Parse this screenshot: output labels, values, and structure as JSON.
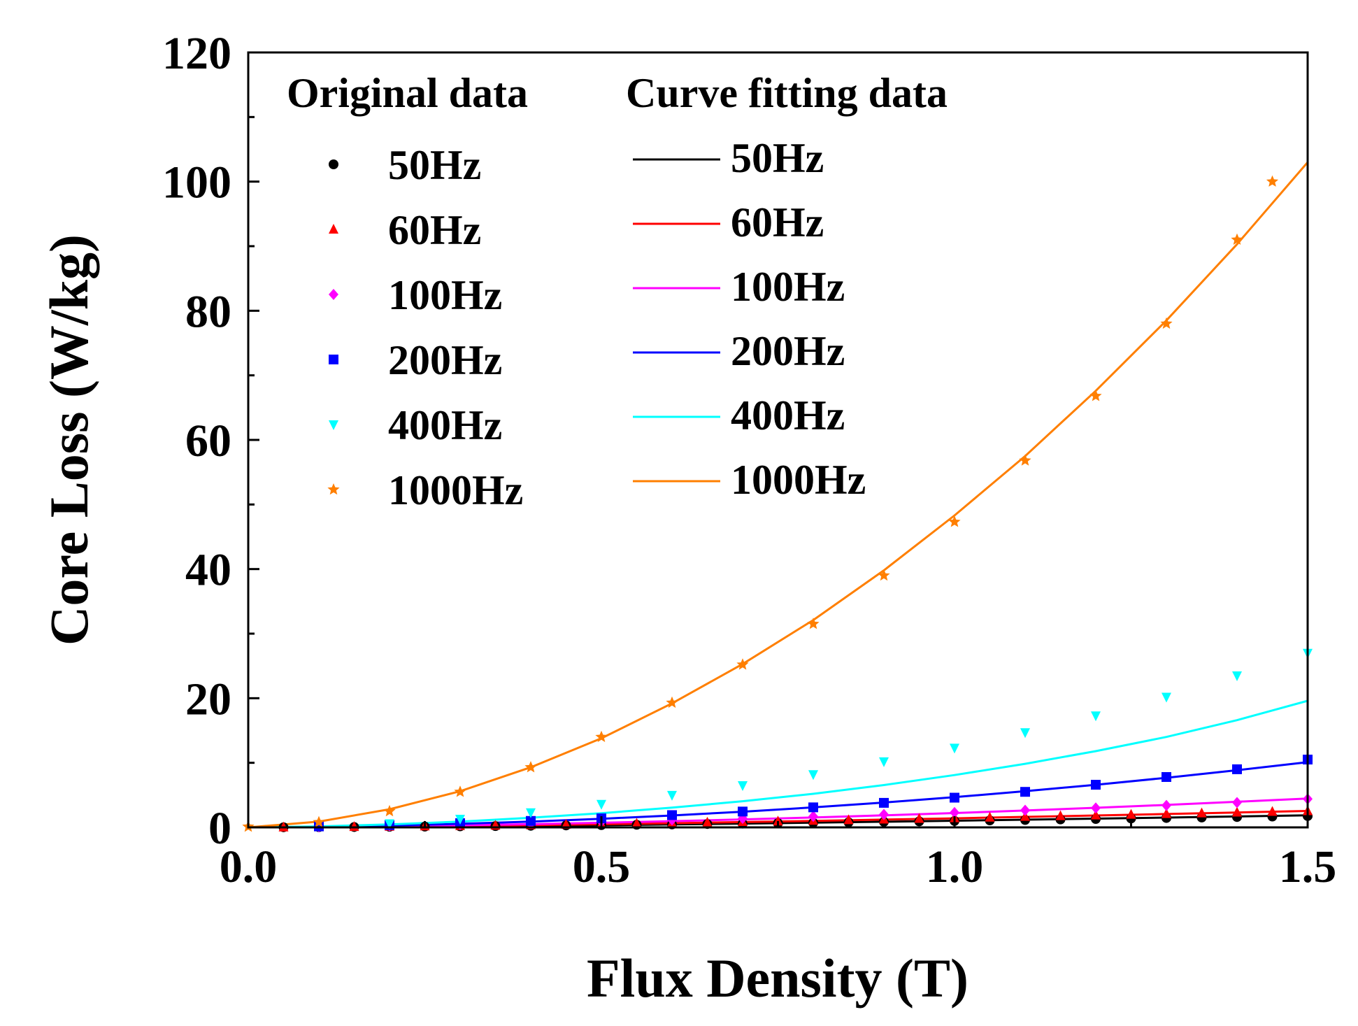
{
  "chart_data": {
    "type": "scatter",
    "title": "",
    "xlabel": "Flux Density (T)",
    "ylabel": "Core Loss (W/kg)",
    "xlim": [
      0,
      1.5
    ],
    "ylim": [
      0,
      120
    ],
    "xticks": [
      "0.0",
      "0.5",
      "1.0",
      "1.5"
    ],
    "yticks": [
      "0",
      "20",
      "40",
      "60",
      "80",
      "100",
      "120"
    ],
    "grid": false,
    "legend": {
      "position": "top-left",
      "original_header": "Original data",
      "fit_header": "Curve fitting data"
    },
    "series": [
      {
        "name": "50Hz",
        "color": "#000000",
        "marker": "circle",
        "points": {
          "x": [
            0.05,
            0.1,
            0.15,
            0.2,
            0.25,
            0.3,
            0.35,
            0.4,
            0.45,
            0.5,
            0.55,
            0.6,
            0.65,
            0.7,
            0.75,
            0.8,
            0.85,
            0.9,
            0.95,
            1.0,
            1.05,
            1.1,
            1.15,
            1.2,
            1.25,
            1.3,
            1.35,
            1.4,
            1.45,
            1.5
          ],
          "y": [
            0.02,
            0.04,
            0.06,
            0.09,
            0.12,
            0.16,
            0.2,
            0.25,
            0.3,
            0.35,
            0.4,
            0.46,
            0.52,
            0.58,
            0.65,
            0.72,
            0.78,
            0.86,
            0.93,
            1.0,
            1.08,
            1.15,
            1.23,
            1.3,
            1.38,
            1.45,
            1.53,
            1.6,
            1.68,
            1.75
          ]
        },
        "fit": {
          "x": [
            0,
            0.1,
            0.2,
            0.3,
            0.4,
            0.5,
            0.6,
            0.7,
            0.8,
            0.9,
            1.0,
            1.1,
            1.2,
            1.3,
            1.4,
            1.5
          ],
          "y": [
            0,
            0.03,
            0.08,
            0.15,
            0.24,
            0.34,
            0.46,
            0.59,
            0.73,
            0.88,
            1.03,
            1.19,
            1.35,
            1.52,
            1.69,
            1.87
          ]
        }
      },
      {
        "name": "60Hz",
        "color": "#ff0000",
        "marker": "triangle-up",
        "points": {
          "x": [
            0.05,
            0.1,
            0.15,
            0.2,
            0.25,
            0.3,
            0.35,
            0.4,
            0.45,
            0.5,
            0.55,
            0.6,
            0.65,
            0.7,
            0.75,
            0.8,
            0.85,
            0.9,
            0.95,
            1.0,
            1.05,
            1.1,
            1.15,
            1.2,
            1.25,
            1.3,
            1.35,
            1.4,
            1.45,
            1.5
          ],
          "y": [
            0.03,
            0.06,
            0.1,
            0.14,
            0.19,
            0.24,
            0.3,
            0.37,
            0.44,
            0.52,
            0.6,
            0.68,
            0.77,
            0.86,
            0.95,
            1.05,
            1.15,
            1.25,
            1.35,
            1.45,
            1.55,
            1.66,
            1.77,
            1.88,
            1.99,
            2.1,
            2.21,
            2.33,
            2.44,
            2.55
          ]
        },
        "fit": {
          "x": [
            0,
            0.1,
            0.2,
            0.3,
            0.4,
            0.5,
            0.6,
            0.7,
            0.8,
            0.9,
            1.0,
            1.1,
            1.2,
            1.3,
            1.4,
            1.5
          ],
          "y": [
            0,
            0.05,
            0.13,
            0.23,
            0.35,
            0.49,
            0.65,
            0.82,
            1.0,
            1.2,
            1.4,
            1.62,
            1.84,
            2.07,
            2.31,
            2.55
          ]
        }
      },
      {
        "name": "100Hz",
        "color": "#ff00ff",
        "marker": "diamond",
        "points": {
          "x": [
            0.1,
            0.2,
            0.3,
            0.4,
            0.5,
            0.6,
            0.7,
            0.8,
            0.9,
            1.0,
            1.1,
            1.2,
            1.3,
            1.4,
            1.5
          ],
          "y": [
            0.1,
            0.25,
            0.45,
            0.65,
            0.9,
            1.15,
            1.4,
            1.7,
            2.0,
            2.3,
            2.65,
            3.0,
            3.4,
            3.85,
            4.4
          ]
        },
        "fit": {
          "x": [
            0,
            0.1,
            0.2,
            0.3,
            0.4,
            0.5,
            0.6,
            0.7,
            0.8,
            0.9,
            1.0,
            1.1,
            1.2,
            1.3,
            1.4,
            1.5
          ],
          "y": [
            0,
            0.06,
            0.17,
            0.32,
            0.5,
            0.72,
            0.96,
            1.23,
            1.53,
            1.86,
            2.22,
            2.61,
            3.03,
            3.48,
            3.96,
            4.47
          ]
        }
      },
      {
        "name": "200Hz",
        "color": "#0000ff",
        "marker": "square",
        "points": {
          "x": [
            0.1,
            0.2,
            0.3,
            0.4,
            0.5,
            0.6,
            0.7,
            0.8,
            0.9,
            1.0,
            1.1,
            1.2,
            1.3,
            1.4,
            1.5
          ],
          "y": [
            0.15,
            0.35,
            0.65,
            1.0,
            1.4,
            1.9,
            2.45,
            3.1,
            3.8,
            4.6,
            5.5,
            6.6,
            7.8,
            9.0,
            10.5
          ]
        },
        "fit": {
          "x": [
            0,
            0.1,
            0.2,
            0.3,
            0.4,
            0.5,
            0.6,
            0.7,
            0.8,
            0.9,
            1.0,
            1.1,
            1.2,
            1.3,
            1.4,
            1.5
          ],
          "y": [
            0,
            0.09,
            0.28,
            0.55,
            0.9,
            1.33,
            1.84,
            2.43,
            3.1,
            3.85,
            4.68,
            5.6,
            6.6,
            7.68,
            8.85,
            10.1
          ]
        }
      },
      {
        "name": "400Hz",
        "color": "#00ffff",
        "marker": "triangle-down",
        "points": {
          "x": [
            0.2,
            0.3,
            0.4,
            0.5,
            0.6,
            0.7,
            0.8,
            0.9,
            1.0,
            1.1,
            1.2,
            1.3,
            1.4,
            1.5
          ],
          "y": [
            0.6,
            1.3,
            2.3,
            3.6,
            5.0,
            6.5,
            8.2,
            10.2,
            12.3,
            14.7,
            17.3,
            20.2,
            23.5,
            27.0
          ]
        },
        "fit": {
          "x": [
            0,
            0.1,
            0.2,
            0.3,
            0.4,
            0.5,
            0.6,
            0.7,
            0.8,
            0.9,
            1.0,
            1.1,
            1.2,
            1.3,
            1.4,
            1.5
          ],
          "y": [
            0,
            0.15,
            0.45,
            0.9,
            1.5,
            2.2,
            3.05,
            4.05,
            5.2,
            6.55,
            8.1,
            9.85,
            11.8,
            14.0,
            16.6,
            19.6
          ]
        }
      },
      {
        "name": "1000Hz",
        "color": "#ff7f00",
        "marker": "star",
        "points": {
          "x": [
            0.0,
            0.1,
            0.2,
            0.3,
            0.4,
            0.5,
            0.6,
            0.7,
            0.8,
            0.9,
            1.0,
            1.1,
            1.2,
            1.3,
            1.4,
            1.45
          ],
          "y": [
            0.1,
            0.8,
            2.5,
            5.5,
            9.3,
            14.0,
            19.3,
            25.2,
            31.5,
            39.0,
            47.3,
            56.8,
            66.8,
            78.0,
            91.0,
            100.0
          ]
        },
        "fit": {
          "x": [
            0,
            0.1,
            0.2,
            0.3,
            0.4,
            0.5,
            0.6,
            0.7,
            0.8,
            0.9,
            1.0,
            1.1,
            1.2,
            1.3,
            1.4,
            1.5
          ],
          "y": [
            0,
            0.9,
            2.8,
            5.6,
            9.3,
            13.8,
            19.2,
            25.3,
            32.1,
            39.8,
            48.3,
            57.5,
            67.6,
            78.5,
            90.3,
            103.0
          ]
        }
      }
    ]
  }
}
